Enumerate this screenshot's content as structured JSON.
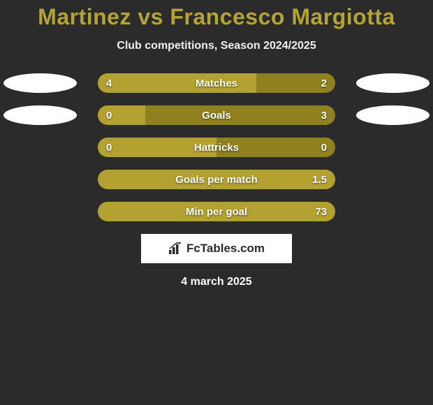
{
  "title_color": "#b3a434",
  "background_color": "#2b2b2b",
  "title": "Martinez vs Francesco Margiotta",
  "subtitle": "Club competitions, Season 2024/2025",
  "date": "4 march 2025",
  "brand": {
    "text": "FcTables.com"
  },
  "bar_track_width": 340,
  "colors": {
    "left": "#b3a131",
    "right": "#8f811f",
    "track": "#8f811f"
  },
  "rows": [
    {
      "label": "Matches",
      "left_value": "4",
      "right_value": "2",
      "left_pct": 66.7,
      "show_left_oval": true,
      "show_right_oval": true
    },
    {
      "label": "Goals",
      "left_value": "0",
      "right_value": "3",
      "left_pct": 20,
      "show_left_oval": true,
      "show_right_oval": true
    },
    {
      "label": "Hattricks",
      "left_value": "0",
      "right_value": "0",
      "left_pct": 50,
      "show_left_oval": false,
      "show_right_oval": false
    },
    {
      "label": "Goals per match",
      "left_value": "",
      "right_value": "1.5",
      "left_pct": 100,
      "show_left_oval": false,
      "show_right_oval": false
    },
    {
      "label": "Min per goal",
      "left_value": "",
      "right_value": "73",
      "left_pct": 100,
      "show_left_oval": false,
      "show_right_oval": false
    }
  ]
}
